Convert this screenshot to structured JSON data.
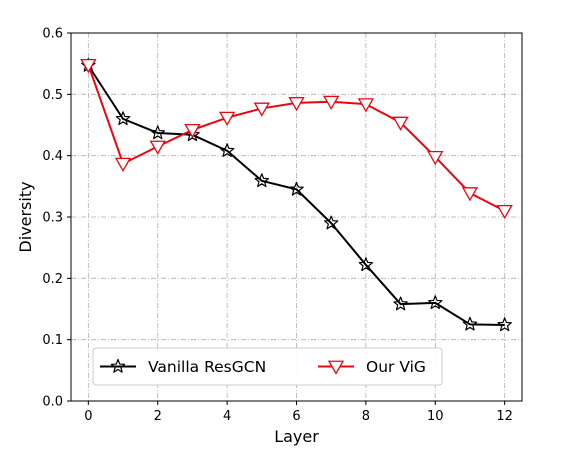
{
  "chart_data": {
    "type": "line",
    "xlabel": "Layer",
    "ylabel": "Diversity",
    "xlim": [
      -0.5,
      12.5
    ],
    "ylim": [
      0.0,
      0.6
    ],
    "xticks": [
      0,
      2,
      4,
      6,
      8,
      10,
      12
    ],
    "yticks": [
      0.0,
      0.1,
      0.2,
      0.3,
      0.4,
      0.5,
      0.6
    ],
    "grid": true,
    "legend_position": "bottom-center",
    "x": [
      0,
      1,
      2,
      3,
      4,
      5,
      6,
      7,
      8,
      9,
      10,
      11,
      12
    ],
    "series": [
      {
        "name": "Vanilla ResGCN",
        "color": "#000000",
        "marker": "star",
        "values": [
          0.547,
          0.46,
          0.437,
          0.434,
          0.408,
          0.359,
          0.345,
          0.29,
          0.222,
          0.158,
          0.16,
          0.125,
          0.124
        ]
      },
      {
        "name": "Our ViG",
        "color": "#e8070f",
        "marker": "triangle-down",
        "values": [
          0.548,
          0.387,
          0.415,
          0.442,
          0.462,
          0.477,
          0.486,
          0.488,
          0.484,
          0.454,
          0.398,
          0.339,
          0.31
        ]
      }
    ]
  }
}
